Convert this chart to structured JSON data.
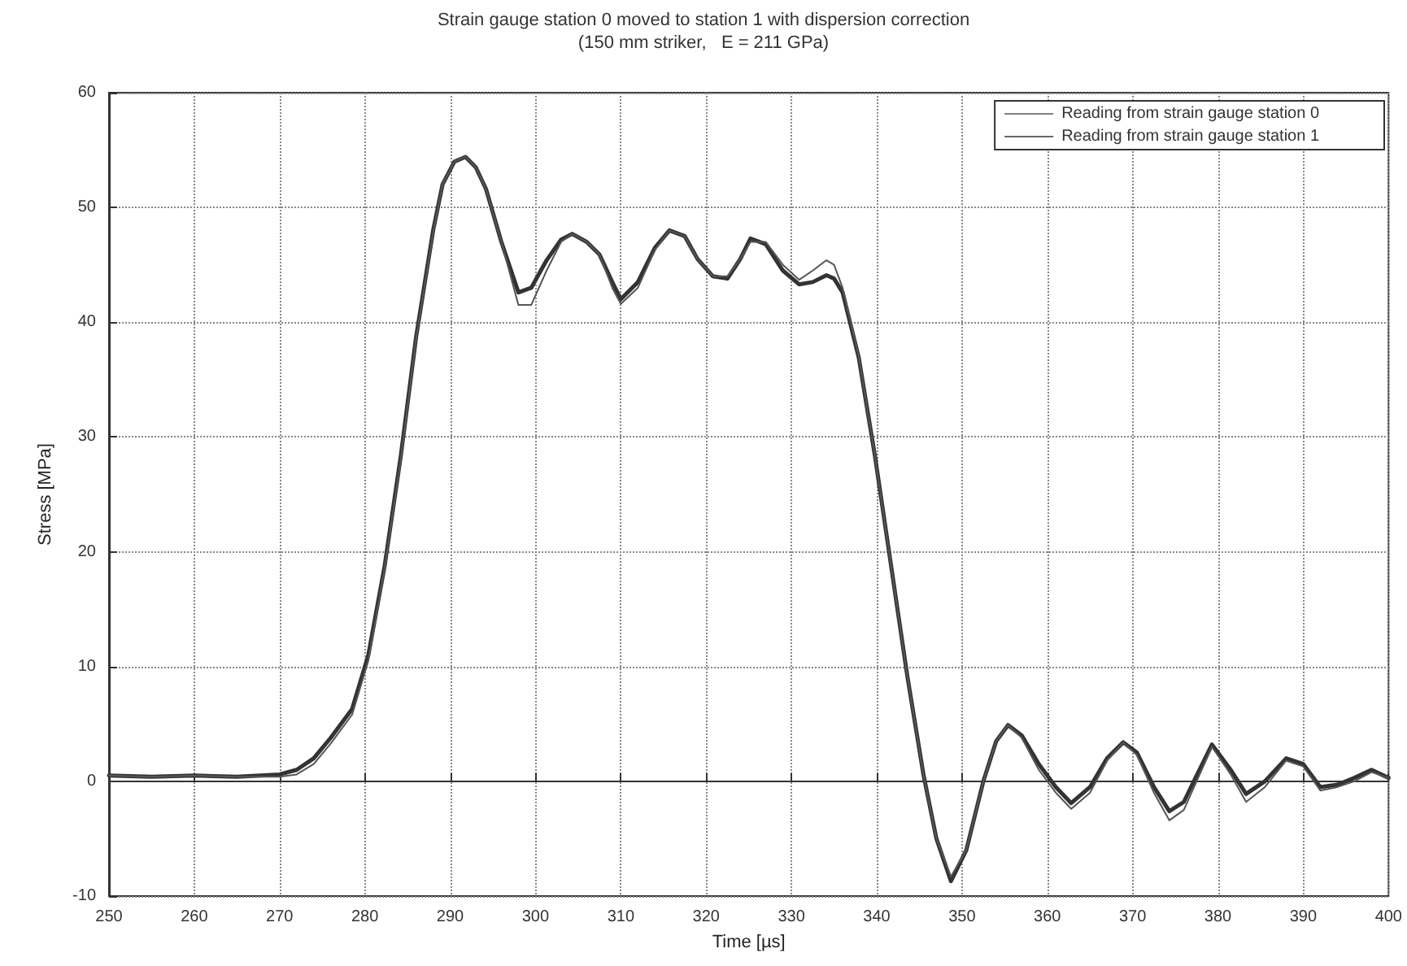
{
  "chart_data": {
    "type": "line",
    "title": "Strain gauge station 0 moved to station 1 with dispersion correction",
    "subtitle": "(150 mm striker,   E = 211 GPa)",
    "xlabel": "Time [µs]",
    "ylabel": "Stress [MPa]",
    "x": [
      250,
      255,
      260,
      265,
      270,
      272,
      274,
      276,
      278.5,
      280.4,
      282.3,
      284.2,
      286,
      288,
      289.1,
      290.5,
      291.8,
      293,
      294.2,
      296,
      298,
      299.5,
      301.3,
      303,
      304.3,
      306,
      307.5,
      309,
      310,
      312,
      314,
      315.7,
      317.5,
      319,
      320.8,
      322.5,
      324,
      325.2,
      327,
      329,
      330.9,
      332.5,
      334.1,
      335,
      336,
      337.9,
      339.8,
      341.7,
      343.6,
      345.5,
      347,
      348.7,
      350.5,
      352.5,
      354,
      355.4,
      357,
      359,
      361,
      362.8,
      365,
      367,
      368.9,
      370.5,
      372.5,
      374.3,
      376,
      377.5,
      379.3,
      381.5,
      383.3,
      385.5,
      388,
      390,
      392,
      394,
      396,
      398,
      400
    ],
    "series": [
      {
        "name": "Reading from strain gauge station 0",
        "color": "#555555",
        "values": [
          0.5,
          0.4,
          0.5,
          0.4,
          0.4,
          0.6,
          1.5,
          3.3,
          5.8,
          10.5,
          18.5,
          28,
          38.5,
          47.8,
          52,
          54,
          54.4,
          53.5,
          51.6,
          47,
          41.5,
          41.5,
          44.5,
          47,
          47.7,
          47,
          45.9,
          43,
          41.6,
          43,
          46.3,
          48,
          47.5,
          45.5,
          44,
          44,
          45.5,
          47,
          47,
          45,
          43.7,
          44.5,
          45.4,
          45,
          43,
          37,
          28.3,
          18.7,
          9.1,
          0.5,
          -5,
          -8.3,
          -6,
          0,
          3.5,
          4.9,
          3.8,
          1,
          -1,
          -2.4,
          -1,
          1.8,
          3.4,
          2.3,
          -1,
          -3.4,
          -2.5,
          0,
          3,
          0.6,
          -1.8,
          -0.5,
          1.8,
          1.3,
          -0.8,
          -0.5,
          0,
          0.8,
          0.3
        ]
      },
      {
        "name": "Reading from strain gauge station 1",
        "color": "#333333",
        "values": [
          0.5,
          0.4,
          0.5,
          0.4,
          0.6,
          1,
          2,
          3.8,
          6.3,
          11,
          18.7,
          28.3,
          38.7,
          48,
          52,
          54,
          54.4,
          53.5,
          51.6,
          47,
          42.6,
          43,
          45.4,
          47.2,
          47.7,
          47,
          45.9,
          43.5,
          42,
          43.5,
          46.5,
          48,
          47.5,
          45.5,
          44,
          43.8,
          45.5,
          47.3,
          46.8,
          44.5,
          43.3,
          43.5,
          44.1,
          43.8,
          42.6,
          36.9,
          28.3,
          18.7,
          9.1,
          0.5,
          -5,
          -8.7,
          -6,
          0,
          3.5,
          4.9,
          4,
          1.5,
          -0.5,
          -1.9,
          -0.5,
          2,
          3.4,
          2.5,
          -0.5,
          -2.6,
          -1.8,
          0.5,
          3.2,
          1,
          -1.1,
          0,
          2,
          1.5,
          -0.5,
          -0.3,
          0.3,
          1,
          0.3
        ]
      }
    ],
    "xlim": [
      250,
      400
    ],
    "xticks": [
      250,
      260,
      270,
      280,
      290,
      300,
      310,
      320,
      330,
      340,
      350,
      360,
      370,
      380,
      390,
      400
    ],
    "ylim": [
      -10,
      60
    ],
    "yticks": [
      -10,
      0,
      10,
      20,
      30,
      40,
      50,
      60
    ],
    "grid": true,
    "legend": "top right",
    "marker": "none",
    "line_style": "solid"
  }
}
